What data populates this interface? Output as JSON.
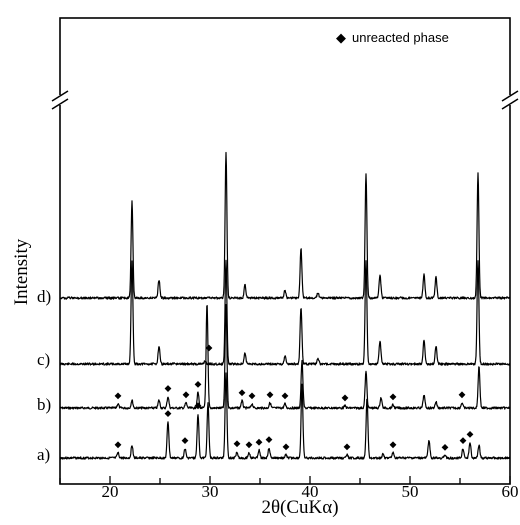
{
  "chart_data": {
    "type": "line",
    "xlabel": "2θ(CuKα)",
    "ylabel": "Intensity",
    "xlim": [
      15,
      60
    ],
    "x_ticks": [
      20,
      30,
      40,
      50,
      60
    ],
    "y_axis_break": true,
    "grid": false,
    "legend": {
      "placement": "top-right",
      "marker": "◆",
      "label": "unreacted phase"
    },
    "series": [
      {
        "name": "a)",
        "baseline": 0.0,
        "peaks": [
          {
            "x": 20.8,
            "h": 0.1
          },
          {
            "x": 22.2,
            "h": 0.25
          },
          {
            "x": 25.8,
            "h": 0.7
          },
          {
            "x": 27.5,
            "h": 0.18
          },
          {
            "x": 28.8,
            "h": 0.85
          },
          {
            "x": 29.8,
            "h": 1.05
          },
          {
            "x": 31.6,
            "h": 1.65
          },
          {
            "x": 32.7,
            "h": 0.12
          },
          {
            "x": 33.9,
            "h": 0.1
          },
          {
            "x": 34.9,
            "h": 0.15
          },
          {
            "x": 35.9,
            "h": 0.2
          },
          {
            "x": 37.6,
            "h": 0.06
          },
          {
            "x": 39.2,
            "h": 1.4
          },
          {
            "x": 43.7,
            "h": 0.06
          },
          {
            "x": 45.7,
            "h": 1.15
          },
          {
            "x": 47.3,
            "h": 0.08
          },
          {
            "x": 48.3,
            "h": 0.1
          },
          {
            "x": 51.9,
            "h": 0.35
          },
          {
            "x": 53.5,
            "h": 0.05
          },
          {
            "x": 55.3,
            "h": 0.18
          },
          {
            "x": 56.0,
            "h": 0.3
          },
          {
            "x": 56.9,
            "h": 0.25
          }
        ],
        "unreacted_markers": [
          20.8,
          25.8,
          27.5,
          28.8,
          32.7,
          33.9,
          34.9,
          35.9,
          37.6,
          43.7,
          48.3,
          53.5,
          55.3,
          56.0
        ]
      },
      {
        "name": "b)",
        "baseline": 0.0,
        "peaks": [
          {
            "x": 20.8,
            "h": 0.08
          },
          {
            "x": 22.2,
            "h": 0.15
          },
          {
            "x": 24.9,
            "h": 0.15
          },
          {
            "x": 25.8,
            "h": 0.22
          },
          {
            "x": 27.6,
            "h": 0.1
          },
          {
            "x": 28.8,
            "h": 0.3
          },
          {
            "x": 29.7,
            "h": 2.0
          },
          {
            "x": 31.6,
            "h": 2.0
          },
          {
            "x": 33.2,
            "h": 0.14
          },
          {
            "x": 34.2,
            "h": 0.08
          },
          {
            "x": 36.0,
            "h": 0.1
          },
          {
            "x": 37.5,
            "h": 0.08
          },
          {
            "x": 39.2,
            "h": 0.9
          },
          {
            "x": 43.5,
            "h": 0.04
          },
          {
            "x": 45.6,
            "h": 0.7
          },
          {
            "x": 47.1,
            "h": 0.2
          },
          {
            "x": 48.3,
            "h": 0.06
          },
          {
            "x": 51.4,
            "h": 0.25
          },
          {
            "x": 52.6,
            "h": 0.12
          },
          {
            "x": 55.2,
            "h": 0.1
          },
          {
            "x": 56.9,
            "h": 0.8
          }
        ],
        "unreacted_markers": [
          20.8,
          25.8,
          27.6,
          28.8,
          29.9,
          33.2,
          34.2,
          36.0,
          37.5,
          43.5,
          48.3,
          55.2
        ]
      },
      {
        "name": "c)",
        "baseline": 0.0,
        "peaks": [
          {
            "x": 22.2,
            "h": 2.0
          },
          {
            "x": 24.9,
            "h": 0.35
          },
          {
            "x": 29.5,
            "h": 0.06
          },
          {
            "x": 31.6,
            "h": 2.0
          },
          {
            "x": 33.5,
            "h": 0.2
          },
          {
            "x": 37.5,
            "h": 0.15
          },
          {
            "x": 39.1,
            "h": 1.1
          },
          {
            "x": 40.8,
            "h": 0.1
          },
          {
            "x": 45.6,
            "h": 2.0
          },
          {
            "x": 47.0,
            "h": 0.45
          },
          {
            "x": 51.4,
            "h": 0.45
          },
          {
            "x": 52.6,
            "h": 0.35
          },
          {
            "x": 56.8,
            "h": 2.0
          }
        ],
        "unreacted_markers": []
      },
      {
        "name": "d)",
        "baseline": 0.0,
        "peaks": [
          {
            "x": 22.2,
            "h": 1.85
          },
          {
            "x": 24.9,
            "h": 0.35
          },
          {
            "x": 31.6,
            "h": 2.8
          },
          {
            "x": 33.5,
            "h": 0.25
          },
          {
            "x": 37.5,
            "h": 0.15
          },
          {
            "x": 39.1,
            "h": 0.95
          },
          {
            "x": 40.8,
            "h": 0.1
          },
          {
            "x": 45.6,
            "h": 2.4
          },
          {
            "x": 47.0,
            "h": 0.45
          },
          {
            "x": 51.4,
            "h": 0.45
          },
          {
            "x": 52.6,
            "h": 0.4
          },
          {
            "x": 56.8,
            "h": 2.4
          }
        ],
        "unreacted_markers": []
      }
    ]
  }
}
